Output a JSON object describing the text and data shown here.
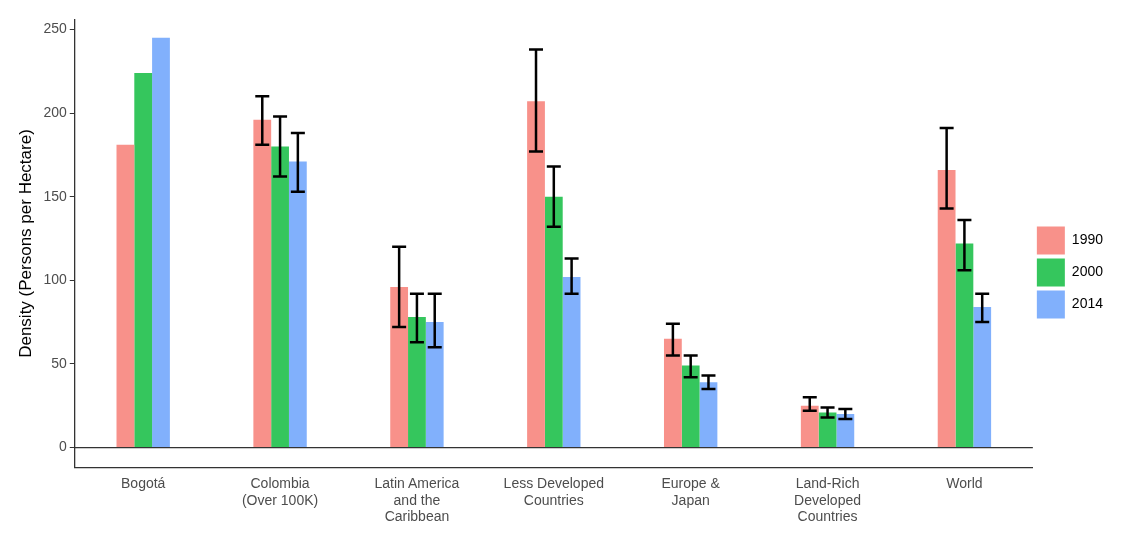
{
  "chart_data": {
    "type": "bar",
    "ylabel": "Density (Persons per Hectare)",
    "categories": [
      "Bogotá",
      "Colombia\n(Over 100K)",
      "Latin America\nand the\nCaribbean",
      "Less Developed\nCountries",
      "Europe &\nJapan",
      "Land-Rich\nDeveloped\nCountries",
      "World"
    ],
    "series": [
      {
        "name": "1990",
        "color": "#f8918a",
        "values": [
          181,
          196,
          96,
          207,
          65,
          25,
          166
        ],
        "errors": [
          null,
          [
            181,
            210
          ],
          [
            72,
            120
          ],
          [
            177,
            238
          ],
          [
            55,
            74
          ],
          [
            22,
            30
          ],
          [
            143,
            191
          ]
        ]
      },
      {
        "name": "2000",
        "color": "#35c65d",
        "values": [
          224,
          180,
          78,
          150,
          49,
          21,
          122
        ],
        "errors": [
          null,
          [
            162,
            198
          ],
          [
            63,
            92
          ],
          [
            132,
            168
          ],
          [
            42,
            55
          ],
          [
            18,
            24
          ],
          [
            106,
            136
          ]
        ]
      },
      {
        "name": "2014",
        "color": "#81b0fc",
        "values": [
          245,
          171,
          75,
          102,
          39,
          20,
          84
        ],
        "errors": [
          null,
          [
            153,
            188
          ],
          [
            60,
            92
          ],
          [
            92,
            113
          ],
          [
            35,
            43
          ],
          [
            17,
            23
          ],
          [
            75,
            92
          ]
        ]
      }
    ],
    "ylim": [
      -12,
      256
    ],
    "yticks": [
      0,
      50,
      100,
      150,
      200,
      250
    ],
    "ref_lines": [
      {
        "axis": "y",
        "value": 0,
        "color": "#333333"
      }
    ],
    "grid": false,
    "legend": "right"
  }
}
